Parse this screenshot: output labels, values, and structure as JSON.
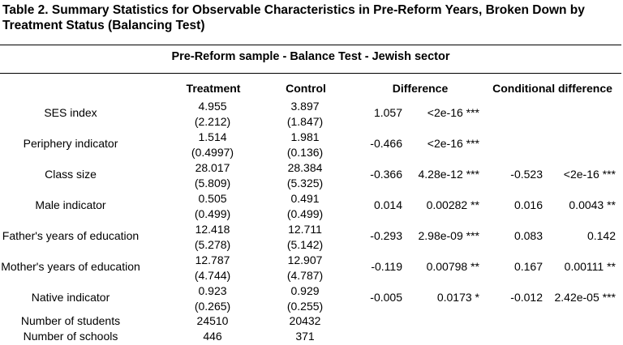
{
  "title": "Table 2. Summary Statistics for Observable Characteristics in Pre-Reform Years, Broken Down by Treatment Status (Balancing Test)",
  "subtitle": "Pre-Reform  sample - Balance Test - Jewish sector",
  "headers": {
    "treatment": "Treatment",
    "control": "Control",
    "difference": "Difference",
    "conditional": "Conditional difference"
  },
  "rows": [
    {
      "label": "SES index",
      "t_mean": "4.955",
      "t_sd": "(2.212)",
      "c_mean": "3.897",
      "c_sd": "(1.847)",
      "diff": "1.057",
      "diff_p": "<2e-16 ***",
      "cond": "",
      "cond_p": ""
    },
    {
      "label": "Periphery indicator",
      "t_mean": "1.514",
      "t_sd": "(0.4997)",
      "c_mean": "1.981",
      "c_sd": "(0.136)",
      "diff": "-0.466",
      "diff_p": "<2e-16 ***",
      "cond": "",
      "cond_p": ""
    },
    {
      "label": "Class size",
      "t_mean": "28.017",
      "t_sd": "(5.809)",
      "c_mean": "28.384",
      "c_sd": "(5.325)",
      "diff": "-0.366",
      "diff_p": "4.28e-12 ***",
      "cond": "-0.523",
      "cond_p": "<2e-16 ***"
    },
    {
      "label": "Male indicator",
      "t_mean": "0.505",
      "t_sd": "(0.499)",
      "c_mean": "0.491",
      "c_sd": "(0.499)",
      "diff": "0.014",
      "diff_p": "0.00282 **",
      "cond": "0.016",
      "cond_p": "0.0043 **"
    },
    {
      "label": "Father's years of education",
      "t_mean": "12.418",
      "t_sd": "(5.278)",
      "c_mean": "12.711",
      "c_sd": "(5.142)",
      "diff": "-0.293",
      "diff_p": "2.98e-09 ***",
      "cond": "0.083",
      "cond_p": "0.142"
    },
    {
      "label": "Mother's years of education",
      "t_mean": "12.787",
      "t_sd": "(4.744)",
      "c_mean": "12.907",
      "c_sd": "(4.787)",
      "diff": "-0.119",
      "diff_p": "0.00798 **",
      "cond": "0.167",
      "cond_p": "0.00111 **"
    },
    {
      "label": "Native indicator",
      "t_mean": "0.923",
      "t_sd": "(0.265)",
      "c_mean": "0.929",
      "c_sd": "(0.255)",
      "diff": "-0.005",
      "diff_p": "0.0173 *",
      "cond": "-0.012",
      "cond_p": "2.42e-05 ***"
    }
  ],
  "counts": [
    {
      "label": "Number of students",
      "treatment": "24510",
      "control": "20432"
    },
    {
      "label": "Number of schools",
      "treatment": "446",
      "control": "371"
    }
  ]
}
